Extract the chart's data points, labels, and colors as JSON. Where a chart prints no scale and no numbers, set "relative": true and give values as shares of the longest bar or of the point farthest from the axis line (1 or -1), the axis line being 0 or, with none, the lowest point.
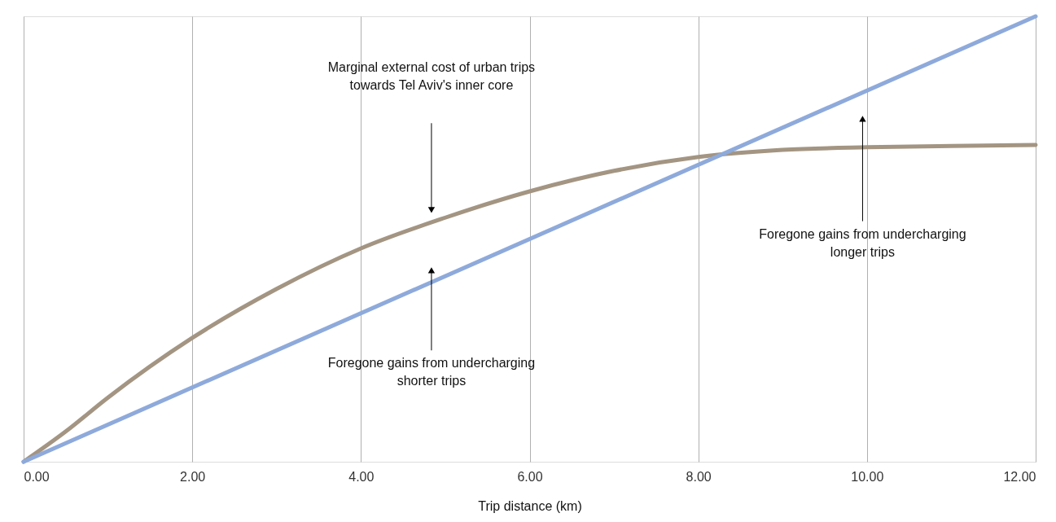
{
  "chart_data": {
    "type": "line",
    "relative": true,
    "xlabel": "Trip distance (km)",
    "xlim": [
      0,
      12
    ],
    "xticks": [
      {
        "value": 0,
        "label": "0.00"
      },
      {
        "value": 2,
        "label": "2.00"
      },
      {
        "value": 4,
        "label": "4.00"
      },
      {
        "value": 6,
        "label": "6.00"
      },
      {
        "value": 8,
        "label": "8.00"
      },
      {
        "value": 10,
        "label": "10.00"
      },
      {
        "value": 12,
        "label": "12.00"
      }
    ],
    "grid": "x",
    "line_style": "solid",
    "tick_labels": "x",
    "series": [
      {
        "color": "#a39582",
        "x": [
          0,
          0.5,
          1,
          2,
          3,
          4,
          5,
          6,
          7,
          8,
          9,
          10,
          11,
          12
        ],
        "values": [
          0,
          0.068,
          0.144,
          0.278,
          0.388,
          0.479,
          0.548,
          0.607,
          0.653,
          0.684,
          0.7,
          0.706,
          0.709,
          0.711
        ]
      },
      {
        "color": "#8eaadb",
        "x": [
          0,
          12
        ],
        "values": [
          0,
          1
        ]
      }
    ],
    "annotations": [
      "Marginal external cost of urban trips\ntowards Tel Aviv's inner core",
      "Foregone gains from undercharging\nshorter trips",
      "Foregone gains from undercharging\nlonger trips"
    ]
  }
}
